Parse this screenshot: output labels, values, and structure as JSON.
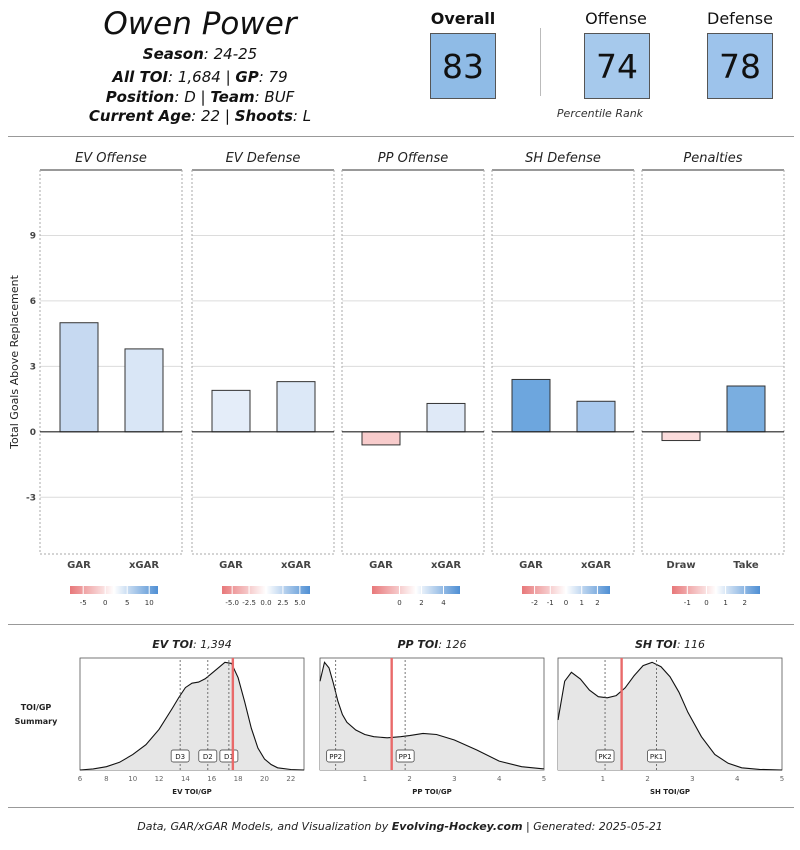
{
  "player": {
    "name": "Owen Power",
    "season_label": "Season",
    "season": "24-25",
    "toi_label": "All TOI",
    "toi": "1,684",
    "gp_label": "GP",
    "gp": "79",
    "position_label": "Position",
    "position": "D",
    "team_label": "Team",
    "team": "BUF",
    "age_label": "Current Age",
    "age": "22",
    "shoots_label": "Shoots",
    "shoots": "L"
  },
  "ranks": {
    "overall_label": "Overall",
    "overall": "83",
    "offense_label": "Offense",
    "offense": "74",
    "defense_label": "Defense",
    "defense": "78",
    "percentile_label": "Percentile Rank",
    "colors": {
      "overall": "#8fbbe6",
      "offense": "#a6c9ec",
      "defense": "#9dc3eb"
    }
  },
  "chart_data": [
    {
      "type": "bar",
      "ylabel": "Total Goals Above Replacement",
      "ylim": [
        -5.6,
        12.0
      ],
      "yticks": [
        -3,
        0,
        3,
        6,
        9
      ],
      "grid": true,
      "panels": [
        {
          "title": "EV Offense",
          "categories": [
            "GAR",
            "xGAR"
          ],
          "values": [
            5.0,
            3.8
          ],
          "colors": [
            "#c6d9f1",
            "#d9e6f6"
          ],
          "legend_ticks": [
            "-5",
            "0",
            "5",
            "10"
          ],
          "legend_range": [
            -8,
            12
          ]
        },
        {
          "title": "EV Defense",
          "categories": [
            "GAR",
            "xGAR"
          ],
          "values": [
            1.9,
            2.3
          ],
          "colors": [
            "#e4edf9",
            "#dce8f7"
          ],
          "legend_ticks": [
            "-5.0",
            "-2.5",
            "0.0",
            "2.5",
            "5.0"
          ],
          "legend_range": [
            -6.5,
            6.5
          ]
        },
        {
          "title": "PP Offense",
          "categories": [
            "GAR",
            "xGAR"
          ],
          "values": [
            -0.6,
            1.3
          ],
          "colors": [
            "#f8cccc",
            "#dfe9f7"
          ],
          "legend_ticks": [
            "0",
            "2",
            "4"
          ],
          "legend_range": [
            -2.5,
            5.5
          ]
        },
        {
          "title": "SH Defense",
          "categories": [
            "GAR",
            "xGAR"
          ],
          "values": [
            2.4,
            1.4
          ],
          "colors": [
            "#6da6de",
            "#a9c9ee"
          ],
          "legend_ticks": [
            "-2",
            "-1",
            "0",
            "1",
            "2"
          ],
          "legend_range": [
            -2.8,
            2.8
          ]
        },
        {
          "title": "Penalties",
          "categories": [
            "Draw",
            "Take"
          ],
          "values": [
            -0.4,
            2.1
          ],
          "colors": [
            "#fbdcdc",
            "#7aaee0"
          ],
          "legend_ticks": [
            "-1",
            "0",
            "1",
            "2"
          ],
          "legend_range": [
            -1.8,
            2.8
          ]
        }
      ]
    },
    {
      "type": "area",
      "ylabel": "TOI/GP Summary",
      "panels": [
        {
          "title_label": "EV TOI",
          "title_value": "1,394",
          "xlabel": "EV TOI/GP",
          "xlim": [
            6,
            23
          ],
          "xticks": [
            6,
            8,
            10,
            12,
            14,
            16,
            18,
            20,
            22
          ],
          "x": [
            6,
            7,
            8,
            9,
            10,
            11,
            12,
            13,
            13.5,
            14,
            14.5,
            15,
            15.5,
            16,
            16.5,
            17,
            17.5,
            18,
            18.5,
            19,
            19.5,
            20,
            20.5,
            21,
            22,
            23
          ],
          "y": [
            0.0,
            0.01,
            0.03,
            0.07,
            0.14,
            0.23,
            0.37,
            0.56,
            0.66,
            0.75,
            0.79,
            0.8,
            0.83,
            0.88,
            0.93,
            0.98,
            0.97,
            0.84,
            0.62,
            0.38,
            0.2,
            0.1,
            0.05,
            0.02,
            0.005,
            0.0
          ],
          "markers": [
            {
              "label": "D3",
              "x": 13.6
            },
            {
              "label": "D2",
              "x": 15.7
            },
            {
              "label": "D1",
              "x": 17.3
            }
          ],
          "player_x": 17.6
        },
        {
          "title_label": "PP TOI",
          "title_value": "126",
          "xlabel": "PP TOI/GP",
          "xlim": [
            0,
            5
          ],
          "xticks": [
            1,
            2,
            3,
            4,
            5
          ],
          "x": [
            0,
            0.1,
            0.2,
            0.3,
            0.4,
            0.5,
            0.6,
            0.8,
            1.0,
            1.2,
            1.5,
            1.8,
            2.0,
            2.3,
            2.6,
            3.0,
            3.5,
            4.0,
            4.5,
            5.0
          ],
          "y": [
            0.8,
            0.97,
            0.92,
            0.78,
            0.62,
            0.5,
            0.43,
            0.36,
            0.32,
            0.3,
            0.29,
            0.3,
            0.31,
            0.33,
            0.32,
            0.27,
            0.18,
            0.08,
            0.03,
            0.01
          ],
          "markers": [
            {
              "label": "PP2",
              "x": 0.35
            },
            {
              "label": "PP1",
              "x": 1.9
            }
          ],
          "player_x": 1.6
        },
        {
          "title_label": "SH TOI",
          "title_value": "116",
          "xlabel": "SH TOI/GP",
          "xlim": [
            0,
            5
          ],
          "xticks": [
            1,
            2,
            3,
            4,
            5
          ],
          "x": [
            0,
            0.15,
            0.3,
            0.5,
            0.7,
            0.9,
            1.1,
            1.3,
            1.5,
            1.7,
            1.9,
            2.1,
            2.3,
            2.5,
            2.7,
            2.9,
            3.2,
            3.5,
            3.8,
            4.1,
            4.5,
            5.0
          ],
          "y": [
            0.45,
            0.8,
            0.88,
            0.82,
            0.72,
            0.66,
            0.65,
            0.67,
            0.74,
            0.85,
            0.94,
            0.97,
            0.93,
            0.84,
            0.7,
            0.52,
            0.3,
            0.14,
            0.06,
            0.02,
            0.005,
            0.0
          ],
          "markers": [
            {
              "label": "PK2",
              "x": 1.05
            },
            {
              "label": "PK1",
              "x": 2.2
            }
          ],
          "player_x": 1.42
        }
      ]
    }
  ],
  "footer": {
    "prefix": "Data, GAR/xGAR Models, and Visualization by ",
    "site": "Evolving-Hockey.com",
    "suffix": " | Generated: 2025-05-21"
  }
}
